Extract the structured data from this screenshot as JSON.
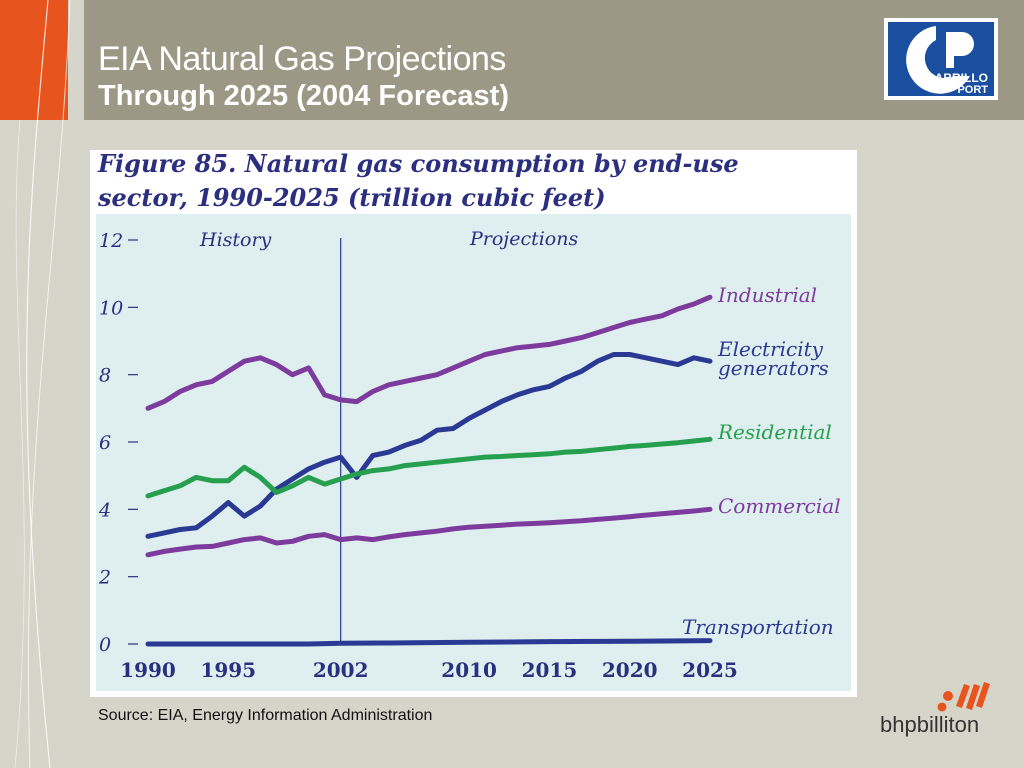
{
  "header": {
    "title": "EIA Natural Gas Projections",
    "subtitle": "Through 2025 (2004 Forecast)"
  },
  "logos": {
    "cabrillo_line1": "CABRILLO",
    "cabrillo_line2": "PORT",
    "bhp": "bhpbilliton"
  },
  "footer": {
    "source": "Source:  EIA, Energy Information Administration"
  },
  "colors": {
    "orange": "#e8541d",
    "header": "#9b9986",
    "background": "#d6d5c9",
    "plot_bg": "#dfeeee",
    "title_text": "#2a2f80",
    "purple": "#7d3b9e",
    "navy": "#2a3a94",
    "green": "#26a04f"
  },
  "chart_data": {
    "type": "line",
    "title_line1": "Figure 85. Natural gas consumption by end-use",
    "title_line2": "sector, 1990-2025 (trillion cubic feet)",
    "xlabel": "",
    "ylabel": "",
    "xlim": [
      1990,
      2025
    ],
    "ylim": [
      0,
      12
    ],
    "y_ticks": [
      0,
      2,
      4,
      6,
      8,
      10,
      12
    ],
    "x_ticks": [
      1990,
      1995,
      2002,
      2010,
      2015,
      2020,
      2025
    ],
    "grid": false,
    "divider_year": 2002,
    "history_label": "History",
    "projections_label": "Projections",
    "series": [
      {
        "name": "Industrial",
        "color": "purple",
        "label_lines": [
          "Industrial"
        ],
        "x": [
          1990,
          1991,
          1992,
          1993,
          1994,
          1995,
          1996,
          1997,
          1998,
          1999,
          2000,
          2001,
          2002,
          2003,
          2004,
          2005,
          2006,
          2007,
          2008,
          2009,
          2010,
          2011,
          2012,
          2013,
          2014,
          2015,
          2016,
          2017,
          2018,
          2019,
          2020,
          2021,
          2022,
          2023,
          2024,
          2025
        ],
        "y": [
          7.0,
          7.2,
          7.5,
          7.7,
          7.8,
          8.1,
          8.4,
          8.5,
          8.3,
          8.0,
          8.2,
          7.4,
          7.25,
          7.2,
          7.5,
          7.7,
          7.8,
          7.9,
          8.0,
          8.2,
          8.4,
          8.6,
          8.7,
          8.8,
          8.85,
          8.9,
          9.0,
          9.1,
          9.25,
          9.4,
          9.55,
          9.65,
          9.75,
          9.95,
          10.1,
          10.3
        ]
      },
      {
        "name": "Electricity generators",
        "color": "navy",
        "label_lines": [
          "Electricity",
          "generators"
        ],
        "x": [
          1990,
          1991,
          1992,
          1993,
          1994,
          1995,
          1996,
          1997,
          1998,
          1999,
          2000,
          2001,
          2002,
          2003,
          2004,
          2005,
          2006,
          2007,
          2008,
          2009,
          2010,
          2011,
          2012,
          2013,
          2014,
          2015,
          2016,
          2017,
          2018,
          2019,
          2020,
          2021,
          2022,
          2023,
          2024,
          2025
        ],
        "y": [
          3.2,
          3.3,
          3.4,
          3.45,
          3.8,
          4.2,
          3.8,
          4.1,
          4.6,
          4.9,
          5.2,
          5.4,
          5.55,
          4.95,
          5.6,
          5.7,
          5.9,
          6.05,
          6.35,
          6.4,
          6.7,
          6.95,
          7.2,
          7.4,
          7.55,
          7.65,
          7.9,
          8.1,
          8.4,
          8.6,
          8.6,
          8.5,
          8.4,
          8.3,
          8.5,
          8.4
        ]
      },
      {
        "name": "Residential",
        "color": "green",
        "label_lines": [
          "Residential"
        ],
        "x": [
          1990,
          1991,
          1992,
          1993,
          1994,
          1995,
          1996,
          1997,
          1998,
          1999,
          2000,
          2001,
          2002,
          2003,
          2004,
          2005,
          2006,
          2007,
          2008,
          2009,
          2010,
          2011,
          2012,
          2013,
          2014,
          2015,
          2016,
          2017,
          2018,
          2019,
          2020,
          2021,
          2022,
          2023,
          2024,
          2025
        ],
        "y": [
          4.4,
          4.55,
          4.7,
          4.95,
          4.85,
          4.85,
          5.25,
          4.95,
          4.5,
          4.7,
          4.95,
          4.75,
          4.9,
          5.05,
          5.15,
          5.2,
          5.3,
          5.35,
          5.4,
          5.45,
          5.5,
          5.55,
          5.57,
          5.6,
          5.62,
          5.65,
          5.7,
          5.72,
          5.77,
          5.82,
          5.87,
          5.9,
          5.94,
          5.98,
          6.03,
          6.08
        ]
      },
      {
        "name": "Commercial",
        "color": "purple",
        "label_lines": [
          "Commercial"
        ],
        "x": [
          1990,
          1991,
          1992,
          1993,
          1994,
          1995,
          1996,
          1997,
          1998,
          1999,
          2000,
          2001,
          2002,
          2003,
          2004,
          2005,
          2006,
          2007,
          2008,
          2009,
          2010,
          2011,
          2012,
          2013,
          2014,
          2015,
          2016,
          2017,
          2018,
          2019,
          2020,
          2021,
          2022,
          2023,
          2024,
          2025
        ],
        "y": [
          2.65,
          2.75,
          2.82,
          2.88,
          2.9,
          3.0,
          3.1,
          3.15,
          3.0,
          3.05,
          3.2,
          3.25,
          3.1,
          3.15,
          3.1,
          3.18,
          3.25,
          3.3,
          3.35,
          3.42,
          3.47,
          3.5,
          3.53,
          3.56,
          3.58,
          3.6,
          3.63,
          3.66,
          3.7,
          3.74,
          3.78,
          3.83,
          3.87,
          3.91,
          3.95,
          4.0
        ]
      },
      {
        "name": "Transportation",
        "color": "navy",
        "label_lines": [
          "Transportation"
        ],
        "x": [
          1990,
          1995,
          2000,
          2002,
          2005,
          2010,
          2015,
          2020,
          2025
        ],
        "y": [
          0.0,
          0.0,
          0.0,
          0.02,
          0.03,
          0.05,
          0.07,
          0.08,
          0.1
        ]
      }
    ]
  }
}
